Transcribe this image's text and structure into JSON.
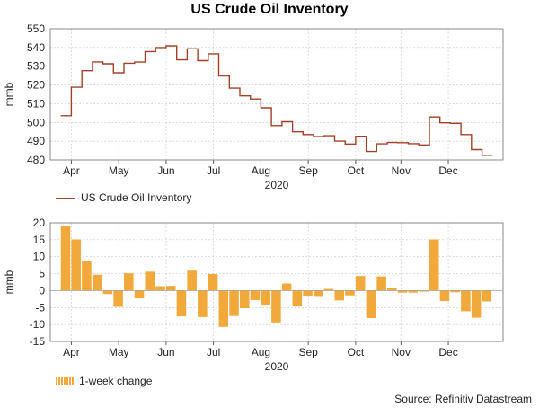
{
  "title": "US Crude Oil Inventory",
  "source": "Source: Refinitiv Datastream",
  "chart_data": [
    {
      "type": "line",
      "name": "top",
      "ylabel": "mmb",
      "xlabel": "2020",
      "ylim": [
        480,
        550
      ],
      "yticks": [
        480,
        490,
        500,
        510,
        520,
        530,
        540,
        550
      ],
      "xlim": [
        0,
        43
      ],
      "month_ticks": [
        {
          "label": "Apr",
          "x": 2
        },
        {
          "label": "May",
          "x": 6.5
        },
        {
          "label": "Jun",
          "x": 11
        },
        {
          "label": "Jul",
          "x": 15.5
        },
        {
          "label": "Aug",
          "x": 20
        },
        {
          "label": "Sep",
          "x": 24.5
        },
        {
          "label": "Oct",
          "x": 29
        },
        {
          "label": "Nov",
          "x": 33.3
        },
        {
          "label": "Dec",
          "x": 37.8
        }
      ],
      "series": [
        {
          "name": "US Crude Oil Inventory",
          "color": "#a0422a",
          "values": [
            503.6,
            518.8,
            527.6,
            532.3,
            531.3,
            526.5,
            531.6,
            532.2,
            537.8,
            540.0,
            540.9,
            533.4,
            539.3,
            533.0,
            536.6,
            524.8,
            518.3,
            514.2,
            512.5,
            507.8,
            498.3,
            500.4,
            495.0,
            493.5,
            492.4,
            492.9,
            490.0,
            488.5,
            492.6,
            484.5,
            488.6,
            489.3,
            489.2,
            488.7,
            488.0,
            502.9,
            499.8,
            499.5,
            493.5,
            485.5,
            482.5
          ]
        }
      ]
    },
    {
      "type": "bar",
      "name": "bottom",
      "ylabel": "mmb",
      "xlabel": "2020",
      "ylim": [
        -15,
        20
      ],
      "yticks": [
        -15,
        -10,
        -5,
        0,
        5,
        10,
        15,
        20
      ],
      "xlim": [
        0,
        43
      ],
      "month_ticks": [
        {
          "label": "Apr",
          "x": 2
        },
        {
          "label": "May",
          "x": 6.5
        },
        {
          "label": "Jun",
          "x": 11
        },
        {
          "label": "Jul",
          "x": 15.5
        },
        {
          "label": "Aug",
          "x": 20
        },
        {
          "label": "Sep",
          "x": 24.5
        },
        {
          "label": "Oct",
          "x": 29
        },
        {
          "label": "Nov",
          "x": 33.3
        },
        {
          "label": "Dec",
          "x": 37.8
        }
      ],
      "series": [
        {
          "name": "1-week change",
          "color": "#f2a93b",
          "values": [
            19.2,
            15.1,
            8.8,
            4.7,
            -1.0,
            -4.8,
            5.1,
            -2.3,
            5.6,
            1.3,
            1.4,
            -7.6,
            5.9,
            -7.8,
            4.9,
            -10.7,
            -7.5,
            -5.2,
            -2.8,
            -4.2,
            -9.4,
            2.1,
            -4.7,
            -1.5,
            -1.6,
            0.5,
            -2.9,
            -1.4,
            4.3,
            -8.1,
            4.2,
            0.7,
            -0.6,
            -0.6,
            -0.3,
            15.1,
            -3.1,
            -0.5,
            -6.1,
            -8.0,
            -3.2
          ]
        }
      ]
    }
  ]
}
